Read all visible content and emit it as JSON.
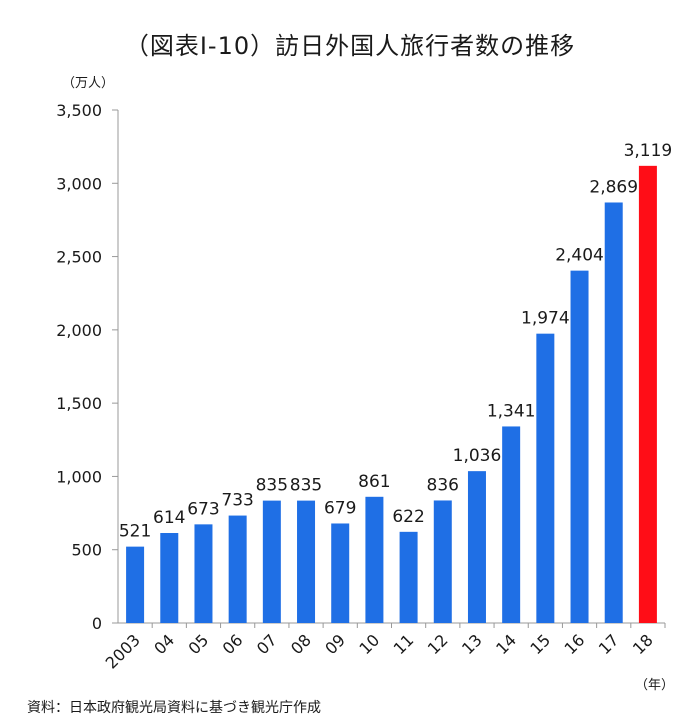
{
  "chart_data": {
    "type": "bar",
    "title": "（図表Ⅰ-10）訪日外国人旅行者数の推移",
    "ylabel": "（万人）",
    "xlabel": "（年）",
    "source": "資料：日本政府観光局資料に基づき観光庁作成",
    "ylim": [
      0,
      3500
    ],
    "yticks": [
      0,
      500,
      1000,
      1500,
      2000,
      2500,
      3000,
      3500
    ],
    "ytick_labels": [
      "0",
      "500",
      "1,000",
      "1,500",
      "2,000",
      "2,500",
      "3,000",
      "3,500"
    ],
    "categories": [
      "2003",
      "04",
      "05",
      "06",
      "07",
      "08",
      "09",
      "10",
      "11",
      "12",
      "13",
      "14",
      "15",
      "16",
      "17",
      "18"
    ],
    "values": [
      521,
      614,
      673,
      733,
      835,
      835,
      679,
      861,
      622,
      836,
      1036,
      1341,
      1974,
      2404,
      2869,
      3119
    ],
    "value_labels": [
      "521",
      "614",
      "673",
      "733",
      "835",
      "835",
      "679",
      "861",
      "622",
      "836",
      "1,036",
      "1,341",
      "1,974",
      "2,404",
      "2,869",
      "3,119"
    ],
    "colors": {
      "default": "#1f6fe5",
      "highlight": "#ff0d17",
      "axis": "#999999"
    },
    "highlight_index": 15
  }
}
